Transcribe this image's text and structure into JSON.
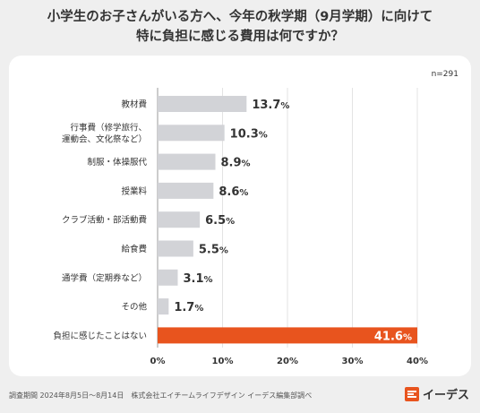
{
  "title_line1": "小学生のお子さんがいる方へ、今年の秋学期（9月学期）に向けて",
  "title_line2": "特に負担に感じる費用は何ですか？",
  "sample_size": "n=291",
  "footer": "調査期間 2024年8月5日～8月14日　株式会社エイチームライフデザイン イーデス編集部調べ",
  "brand": "イーデス",
  "colors": {
    "bar": "#d2d3d7",
    "highlight": "#e8541e",
    "background": "#efefef",
    "card": "#ffffff"
  },
  "chart_data": {
    "type": "bar",
    "orientation": "horizontal",
    "categories": [
      [
        "教材費"
      ],
      [
        "行事費（修学旅行、",
        "運動会、文化祭など）"
      ],
      [
        "制服・体操服代"
      ],
      [
        "授業料"
      ],
      [
        "クラブ活動・部活動費"
      ],
      [
        "給食費"
      ],
      [
        "通学費（定期券など）"
      ],
      [
        "その他"
      ],
      [
        "負担に感じたことはない"
      ]
    ],
    "values": [
      13.7,
      10.3,
      8.9,
      8.6,
      6.5,
      5.5,
      3.1,
      1.7,
      41.6
    ],
    "highlight_index": 8,
    "xlim": [
      0,
      40
    ],
    "xticks": [
      0,
      10,
      20,
      30,
      40
    ],
    "value_suffix": "%",
    "grid": "vertical",
    "legend": "none"
  }
}
